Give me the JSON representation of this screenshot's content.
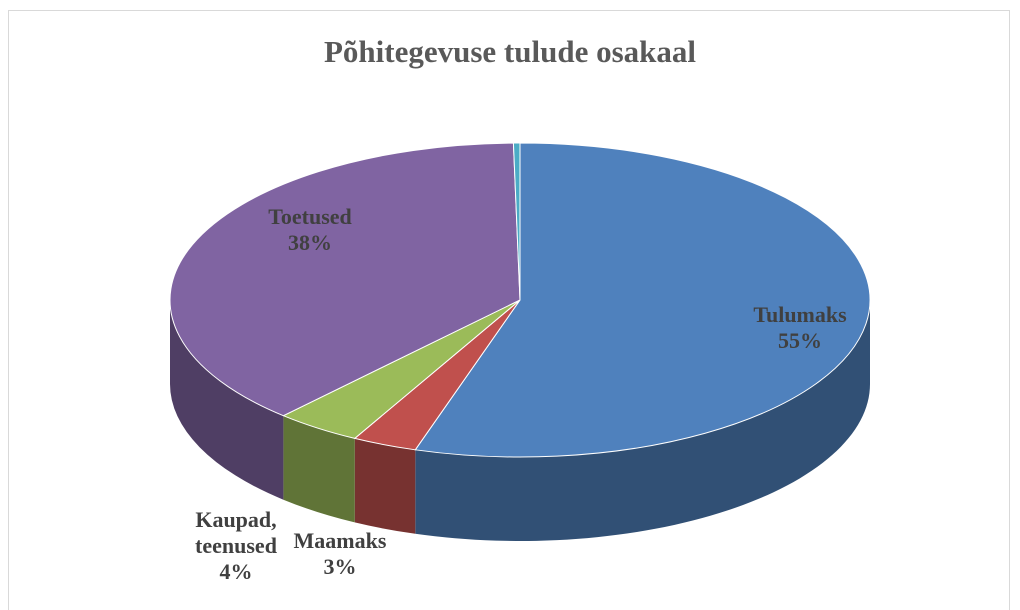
{
  "chart_data": {
    "type": "pie",
    "title": "Põhitegevuse tulude osakaal",
    "categories": [
      "Tulumaks",
      "Maamaks",
      "Kaupad, teenused",
      "Toetused",
      null
    ],
    "values": [
      55,
      3,
      4,
      38,
      0.3
    ],
    "value_labels": [
      "55%",
      "3%",
      "4%",
      "38%",
      null
    ],
    "colors": [
      "#4f81bd",
      "#c0504d",
      "#9bbb59",
      "#8064a2",
      "#4bacc6"
    ],
    "start_angle": 0,
    "direction": "clockwise",
    "three_d": true
  }
}
